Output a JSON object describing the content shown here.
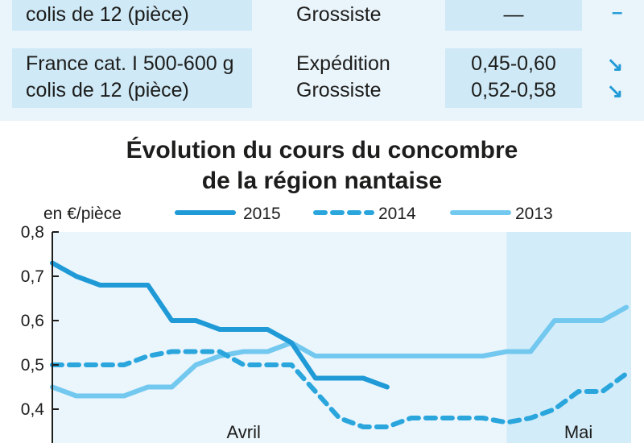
{
  "table": {
    "rows": [
      {
        "product_lines": [
          "colis de 12 (pièce)"
        ],
        "stage_lines": [
          "Grossiste"
        ],
        "price_lines": [
          "—"
        ],
        "trend_lines": [
          "–"
        ]
      },
      {
        "product_lines": [
          "France cat. I 500-600 g",
          "colis de 12 (pièce)"
        ],
        "stage_lines": [
          "Expédition",
          "Grossiste"
        ],
        "price_lines": [
          "0,45-0,60",
          "0,52-0,58"
        ],
        "trend_lines": [
          "↘",
          "↘"
        ]
      }
    ]
  },
  "chart_data": {
    "type": "line",
    "title": [
      "Évolution du cours du concombre",
      "de la région nantaise"
    ],
    "ylabel": "en €/pièce",
    "ylim": [
      0.3,
      0.8
    ],
    "yticks": [
      "0,8",
      "0,7",
      "0,6",
      "0,5",
      "0,4"
    ],
    "ytick_values": [
      0.8,
      0.7,
      0.6,
      0.5,
      0.4
    ],
    "x_range": [
      0,
      24
    ],
    "months": [
      {
        "label": "Avril",
        "x": 8
      },
      {
        "label": "Mai",
        "x": 22
      }
    ],
    "shaded_region": [
      19,
      24
    ],
    "grid": false,
    "legend_position": "top",
    "series": [
      {
        "name": "2015",
        "style": "solid-dark",
        "color": "#1f9ad6",
        "x": [
          0,
          1,
          2,
          3,
          4,
          5,
          6,
          7,
          8,
          9,
          10,
          11,
          12,
          13,
          14
        ],
        "y": [
          0.73,
          0.7,
          0.68,
          0.68,
          0.68,
          0.6,
          0.6,
          0.58,
          0.58,
          0.58,
          0.55,
          0.47,
          0.47,
          0.47,
          0.45
        ]
      },
      {
        "name": "2014",
        "style": "dashed",
        "color": "#2aa6dd",
        "x": [
          0,
          1,
          2,
          3,
          4,
          5,
          6,
          7,
          8,
          9,
          10,
          11,
          12,
          13,
          14,
          15,
          16,
          17,
          18,
          19,
          20,
          21,
          22,
          23,
          24
        ],
        "y": [
          0.5,
          0.5,
          0.5,
          0.5,
          0.52,
          0.53,
          0.53,
          0.53,
          0.5,
          0.5,
          0.5,
          0.44,
          0.38,
          0.36,
          0.36,
          0.38,
          0.38,
          0.38,
          0.38,
          0.37,
          0.38,
          0.4,
          0.44,
          0.44,
          0.48
        ]
      },
      {
        "name": "2013",
        "style": "solid-light",
        "color": "#72c8ef",
        "x": [
          0,
          1,
          2,
          3,
          4,
          5,
          6,
          7,
          8,
          9,
          10,
          11,
          12,
          13,
          14,
          15,
          16,
          17,
          18,
          19,
          20,
          21,
          22,
          23,
          24
        ],
        "y": [
          0.45,
          0.43,
          0.43,
          0.43,
          0.45,
          0.45,
          0.5,
          0.52,
          0.53,
          0.53,
          0.55,
          0.52,
          0.52,
          0.52,
          0.52,
          0.52,
          0.52,
          0.52,
          0.52,
          0.53,
          0.53,
          0.6,
          0.6,
          0.6,
          0.63
        ]
      }
    ]
  }
}
